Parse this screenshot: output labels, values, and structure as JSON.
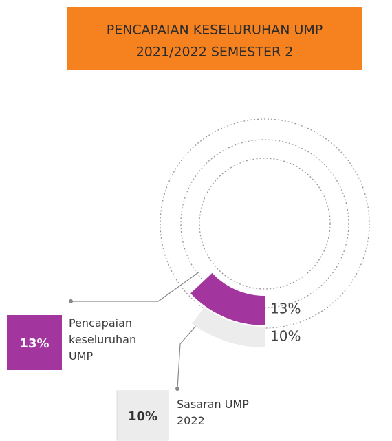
{
  "chart_data": {
    "type": "radial_bar",
    "title": [
      "PENCAPAIAN KESELURUHAN UMP",
      "2021/2022 SEMESTER 2"
    ],
    "ylim": [
      0,
      100
    ],
    "series": [
      {
        "name": "Pencapaian keseluruhan UMP",
        "color": "#a3359f",
        "values": [
          13
        ],
        "value_labels": [
          "13%"
        ]
      },
      {
        "name": "Sasaran UMP 2022",
        "color": "#ececec",
        "values": [
          10
        ],
        "value_labels": [
          "10%"
        ]
      }
    ]
  }
}
